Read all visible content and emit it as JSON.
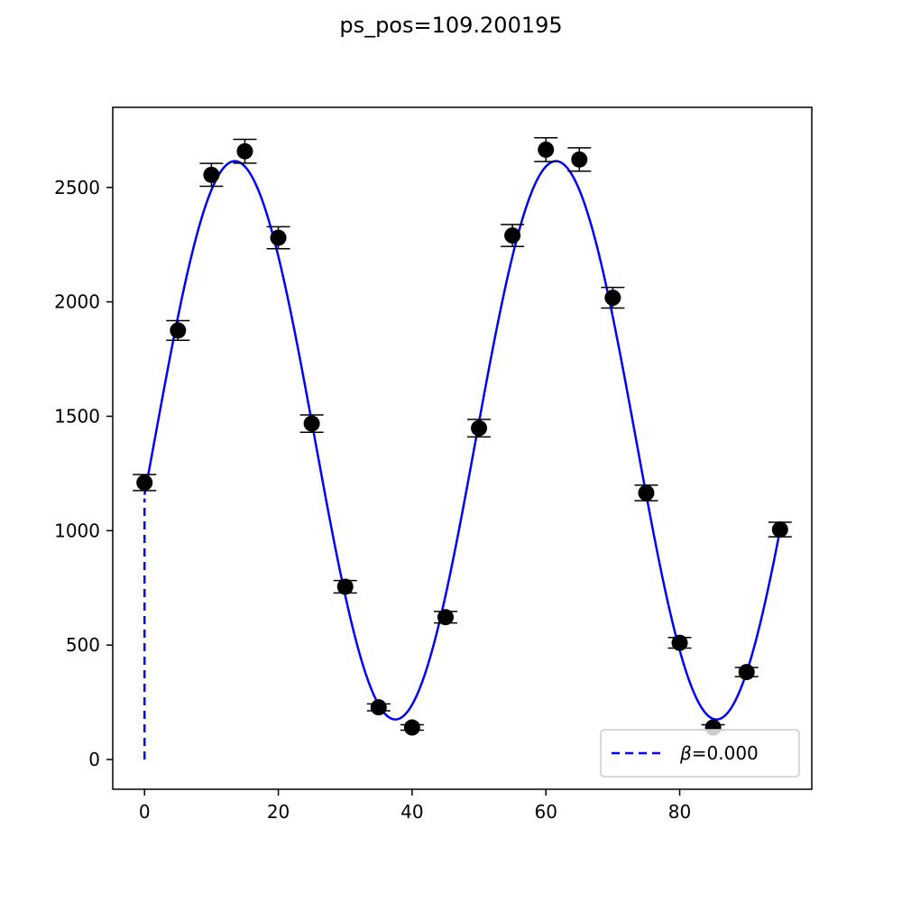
{
  "figure": {
    "title": "ps_pos=109.200195"
  },
  "chart_data": {
    "type": "scatter",
    "title": "ps_pos=109.200195",
    "xlabel": "",
    "ylabel": "",
    "xlim": [
      -4.75,
      99.75
    ],
    "ylim": [
      -130,
      2850
    ],
    "x_ticks": [
      0,
      20,
      40,
      60,
      80
    ],
    "y_ticks": [
      0,
      500,
      1000,
      1500,
      2000,
      2500
    ],
    "grid": false,
    "legend_position": "lower right",
    "series": [
      {
        "kind": "errorbar",
        "color": "#000000",
        "x": [
          0,
          5,
          10,
          15,
          20,
          25,
          30,
          35,
          40,
          45,
          50,
          55,
          60,
          65,
          70,
          75,
          80,
          85,
          90,
          95
        ],
        "y": [
          1210,
          1875,
          2555,
          2658,
          2280,
          1468,
          755,
          228,
          140,
          622,
          1448,
          2290,
          2665,
          2622,
          2018,
          1165,
          510,
          140,
          382,
          1005
        ],
        "yerr": [
          35,
          43,
          50,
          52,
          48,
          38,
          27,
          15,
          12,
          25,
          38,
          48,
          52,
          51,
          45,
          34,
          23,
          12,
          20,
          32
        ]
      },
      {
        "kind": "fit_curve",
        "color": "#0000ff",
        "model": "offset + amplitude*cos(2*pi*(x - x_peak)/period)",
        "offset": 1395,
        "amplitude": 1220,
        "period": 48,
        "x_peak": 13.5,
        "x_range": [
          0,
          95
        ]
      },
      {
        "kind": "dashed_line",
        "name": "β=0.000",
        "color": "#0000ff",
        "x": [
          0,
          0
        ],
        "y": [
          0,
          1140
        ]
      }
    ],
    "legend": [
      {
        "label_symbol": "β",
        "label_value": "=0.000",
        "style": "dashed",
        "color": "#0000ff"
      }
    ]
  }
}
